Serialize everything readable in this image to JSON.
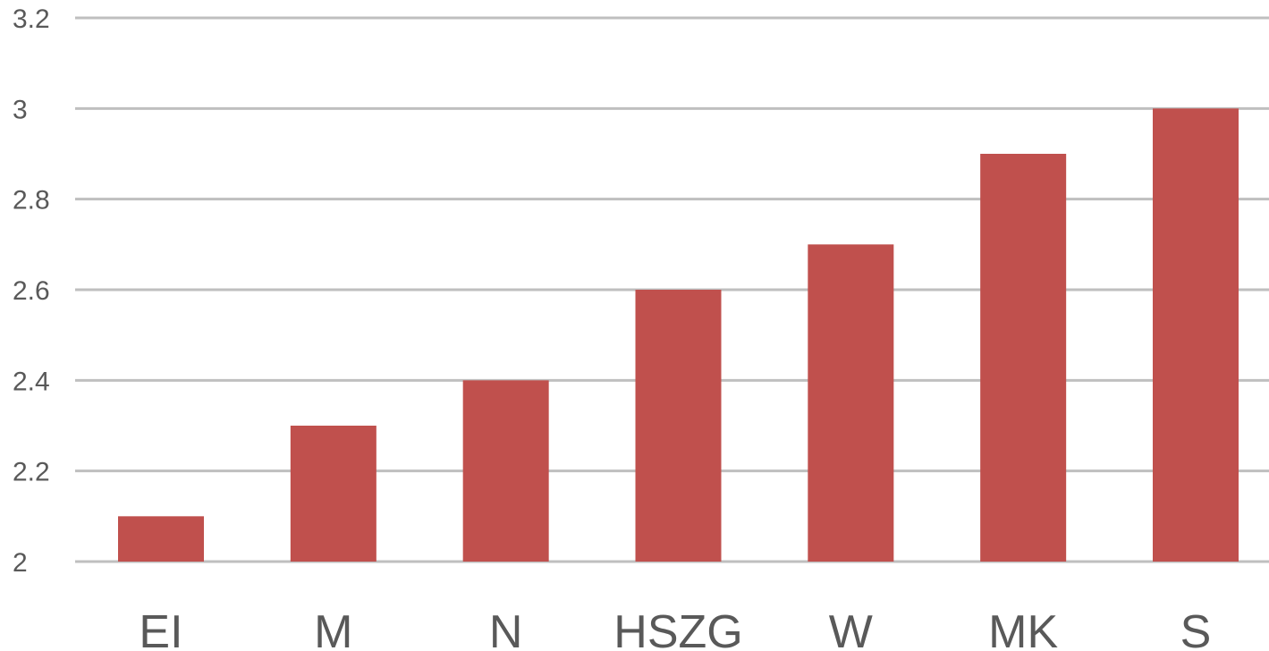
{
  "chart_data": {
    "type": "bar",
    "categories": [
      "EI",
      "M",
      "N",
      "HSZG",
      "W",
      "MK",
      "S"
    ],
    "values": [
      2.1,
      2.3,
      2.4,
      2.6,
      2.7,
      2.9,
      3.0
    ],
    "ylim": [
      2,
      3.2
    ],
    "yticks": [
      "2",
      "2.2",
      "2.4",
      "2.6",
      "2.8",
      "3",
      "3.2"
    ],
    "title": "",
    "xlabel": "",
    "ylabel": "",
    "grid": true,
    "legend": "none",
    "colors": {
      "bar": "#C0504D",
      "gridline": "#BFBFBF",
      "text": "#595959"
    }
  }
}
